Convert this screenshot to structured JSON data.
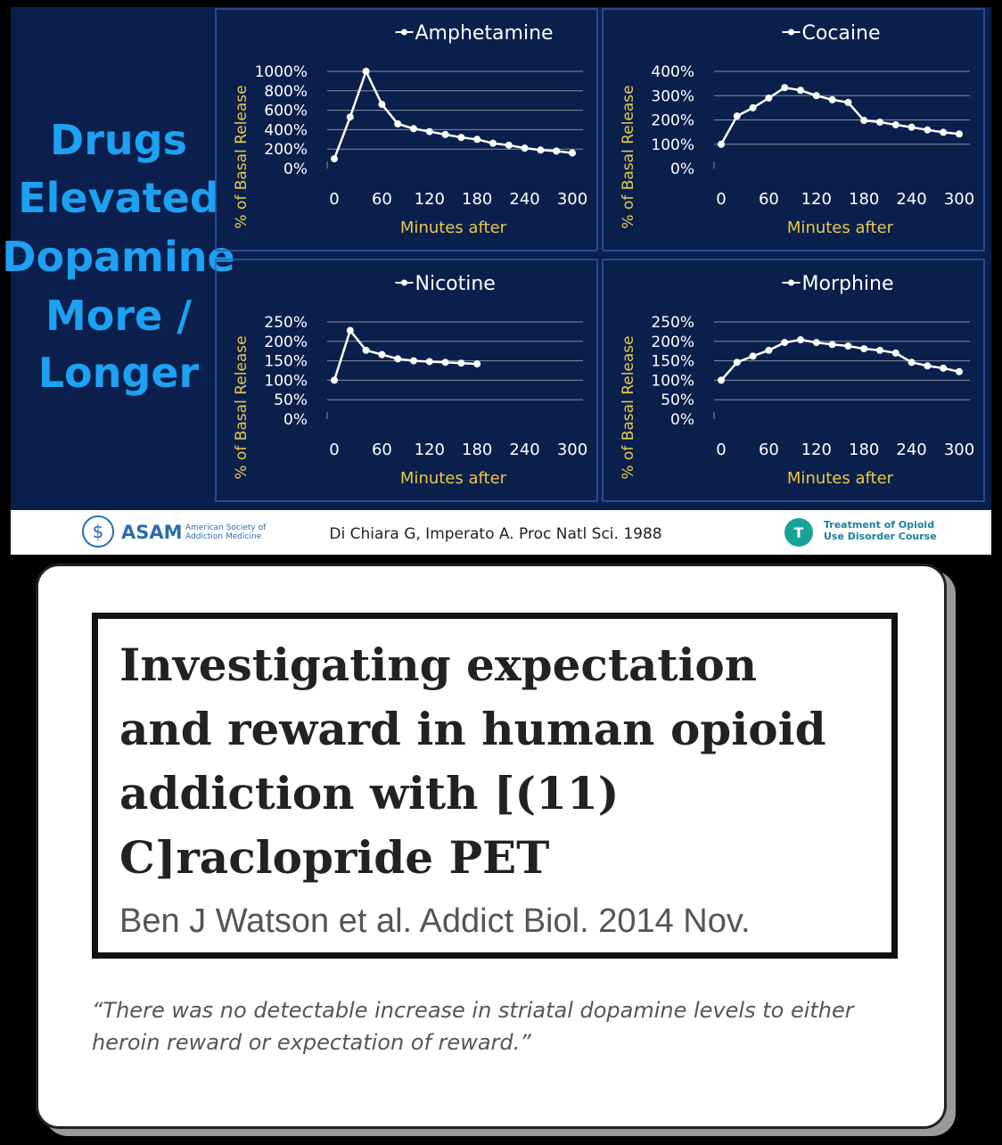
{
  "chart_data": [
    {
      "type": "line",
      "ylabel": "% of Basal Release",
      "xlabel": "Minutes after",
      "x": [
        0,
        20,
        40,
        60,
        80,
        100,
        120,
        140,
        160,
        180,
        200,
        220,
        240,
        260,
        280,
        300
      ],
      "series": [
        {
          "name": "Amphetamine",
          "color": "#ffffff",
          "values": [
            100,
            530,
            1000,
            660,
            460,
            410,
            380,
            350,
            320,
            300,
            260,
            240,
            210,
            190,
            180,
            160
          ]
        }
      ],
      "xlim": [
        0,
        300
      ],
      "xticks": [
        0,
        60,
        120,
        180,
        240,
        300
      ],
      "ylim": [
        0,
        1000
      ],
      "yticks": [
        {
          "value": 0,
          "label": "0%"
        },
        {
          "value": 200,
          "label": "200%"
        },
        {
          "value": 400,
          "label": "400%"
        },
        {
          "value": 600,
          "label": "600%"
        },
        {
          "value": 800,
          "label": "800%"
        },
        {
          "value": 1000,
          "label": "1000%"
        }
      ],
      "grid": true
    },
    {
      "type": "line",
      "ylabel": "% of Basal Release",
      "xlabel": "Minutes after",
      "x": [
        0,
        20,
        40,
        60,
        80,
        100,
        120,
        140,
        160,
        180,
        200,
        220,
        240,
        260,
        280,
        300
      ],
      "series": [
        {
          "name": "Cocaine",
          "color": "#ffffff",
          "values": [
            100,
            216,
            250,
            290,
            333,
            322,
            300,
            283,
            272,
            198,
            191,
            180,
            170,
            159,
            149,
            142
          ]
        }
      ],
      "xlim": [
        0,
        300
      ],
      "xticks": [
        0,
        60,
        120,
        180,
        240,
        300
      ],
      "ylim": [
        0,
        400
      ],
      "yticks": [
        {
          "value": 0,
          "label": "0%"
        },
        {
          "value": 100,
          "label": "100%"
        },
        {
          "value": 200,
          "label": "200%"
        },
        {
          "value": 300,
          "label": "300%"
        },
        {
          "value": 400,
          "label": "400%"
        }
      ],
      "grid": true
    },
    {
      "type": "line",
      "ylabel": "% of Basal Release",
      "xlabel": "Minutes after",
      "x": [
        0,
        20,
        40,
        60,
        80,
        100,
        120,
        140,
        160,
        180
      ],
      "series": [
        {
          "name": "Nicotine",
          "color": "#ffffff",
          "values": [
            100,
            228,
            177,
            166,
            155,
            150,
            148,
            146,
            144,
            142
          ]
        }
      ],
      "xlim": [
        0,
        300
      ],
      "xticks": [
        0,
        60,
        120,
        180,
        240,
        300
      ],
      "ylim": [
        0,
        250
      ],
      "yticks": [
        {
          "value": 0,
          "label": "0%"
        },
        {
          "value": 50,
          "label": "50%"
        },
        {
          "value": 100,
          "label": "100%"
        },
        {
          "value": 150,
          "label": "150%"
        },
        {
          "value": 200,
          "label": "200%"
        },
        {
          "value": 250,
          "label": "250%"
        }
      ],
      "grid": true
    },
    {
      "type": "line",
      "ylabel": "% of Basal Release",
      "xlabel": "Minutes after",
      "x": [
        0,
        20,
        40,
        60,
        80,
        100,
        120,
        140,
        160,
        180,
        200,
        220,
        240,
        260,
        280,
        300
      ],
      "series": [
        {
          "name": "Morphine",
          "color": "#ffffff",
          "values": [
            100,
            146,
            162,
            177,
            197,
            204,
            197,
            192,
            188,
            181,
            177,
            170,
            146,
            137,
            131,
            122
          ]
        }
      ],
      "xlim": [
        0,
        300
      ],
      "xticks": [
        0,
        60,
        120,
        180,
        240,
        300
      ],
      "ylim": [
        0,
        250
      ],
      "yticks": [
        {
          "value": 0,
          "label": "0%"
        },
        {
          "value": 50,
          "label": "50%"
        },
        {
          "value": 100,
          "label": "100%"
        },
        {
          "value": 150,
          "label": "150%"
        },
        {
          "value": 200,
          "label": "200%"
        },
        {
          "value": 250,
          "label": "250%"
        }
      ],
      "grid": true
    }
  ],
  "slide": {
    "title_lines": [
      "Drugs",
      "Elevated",
      "Dopamine",
      "More /",
      "Longer"
    ],
    "citation": "Di Chiara G, Imperato A. Proc Natl Sci. 1988",
    "footer_left": {
      "logo": "ASAM",
      "name_lines": [
        "American Society of",
        "Addiction Medicine"
      ]
    },
    "footer_right": {
      "badge": "T",
      "name_lines": [
        "Treatment of Opioid",
        "Use Disorder Course"
      ]
    }
  },
  "paper": {
    "title": "Investigating expectation and reward in human opioid addiction with [(11) C]raclopride PET",
    "authors": "Ben J Watson et al. Addict Biol. 2014 Nov.",
    "quote": "“There was no detectable increase in striatal dopamine levels to either heroin reward or expectation of reward.”"
  }
}
